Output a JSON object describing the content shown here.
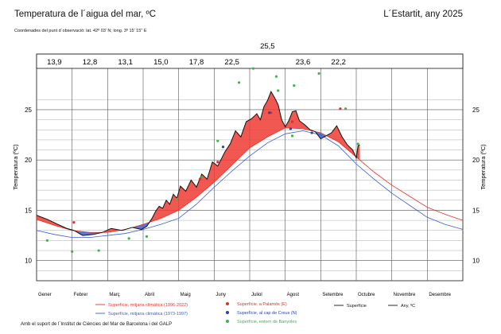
{
  "header": {
    "title": "Temperatura de l´aigua del mar, ºC",
    "subtitle": "Coordenades del punt d´observació: lat. 42º 03' N; long. 3º 15' 15'' E",
    "location": "L´Estartit, any 2025"
  },
  "footer": {
    "credit": "Amb el suport de l´Institut de Ciències del Mar de Barcelona i del GALP"
  },
  "chart_data": {
    "type": "line",
    "title": "Temperatura de l´aigua del mar, ºC",
    "xlabel": "",
    "ylabel": "Temperatura (ºC)",
    "xlim": [
      0,
      12
    ],
    "ylim": [
      8,
      28
    ],
    "yticks": [
      10,
      15,
      20,
      25
    ],
    "grid": true,
    "legend_position": "bottom",
    "x_unit": "month",
    "categories": [
      "Gener",
      "Febrer",
      "Març",
      "Abril",
      "Maig",
      "Juny",
      "Juliol",
      "Agost",
      "Setembre",
      "Octubre",
      "Novembre",
      "Desembre"
    ],
    "monthly_means": [
      "13,9",
      "12,8",
      "13,1",
      "15,0",
      "17,8",
      "22,5",
      "25,5",
      "23,6",
      "22,2",
      "",
      "",
      ""
    ],
    "monthly_means_values": [
      13.9,
      12.8,
      13.1,
      15.0,
      17.8,
      22.5,
      25.5,
      23.6,
      22.2
    ],
    "legend": [
      {
        "label": "Superfície, mitjana climàtica (1996-2022)",
        "color": "#e8312a",
        "kind": "line"
      },
      {
        "label": "Superfície, mitjana climàtica (1973-1997)",
        "color": "#3a5bd9",
        "kind": "line"
      },
      {
        "label": "Superfície, a Palamós (E)",
        "color": "#d4322c",
        "kind": "dot"
      },
      {
        "label": "Superfície, al cap de Creus (N)",
        "color": "#2a3fa8",
        "kind": "dot"
      },
      {
        "label": "Superfície, entorn de Banyoles",
        "color": "#38b64a",
        "kind": "dot"
      },
      {
        "label": "Superfície",
        "color": "#111111",
        "kind": "line"
      },
      {
        "label": "Any,  ºC",
        "color": "#111111",
        "kind": "line"
      }
    ],
    "colors": {
      "warm_fill": "#ee3b33",
      "cool_fill": "#3f5fd3",
      "observed": "#111111"
    },
    "series": [
      {
        "name": "Superfície, mitjana climàtica (1996-2022)",
        "color": "#e8312a",
        "x": [
          0,
          0.5,
          1,
          1.5,
          2,
          2.5,
          3,
          3.5,
          4,
          4.5,
          5,
          5.5,
          6,
          6.5,
          7,
          7.5,
          8,
          8.5,
          9,
          9.5,
          10,
          10.5,
          11,
          11.5,
          12
        ],
        "values": [
          14.1,
          13.5,
          13.0,
          12.8,
          12.8,
          13.1,
          13.6,
          14.2,
          15.0,
          16.3,
          17.8,
          19.5,
          21.2,
          22.3,
          23.2,
          23.1,
          22.7,
          21.8,
          20.3,
          18.8,
          17.5,
          16.4,
          15.3,
          14.6,
          14.0
        ]
      },
      {
        "name": "Superfície, mitjana climàtica (1973-1997)",
        "color": "#3a5bd9",
        "x": [
          0,
          0.5,
          1,
          1.5,
          2,
          2.5,
          3,
          3.5,
          4,
          4.5,
          5,
          5.5,
          6,
          6.5,
          7,
          7.5,
          8,
          8.5,
          9,
          9.5,
          10,
          10.5,
          11,
          11.5,
          12
        ],
        "values": [
          13.0,
          12.6,
          12.3,
          12.3,
          12.5,
          12.7,
          13.1,
          13.6,
          14.2,
          15.6,
          17.3,
          18.9,
          20.4,
          21.7,
          22.6,
          22.9,
          22.5,
          21.4,
          19.6,
          18.1,
          16.7,
          15.5,
          14.3,
          13.6,
          13.1
        ]
      },
      {
        "name": "Superfície",
        "color": "#111111",
        "x": [
          0,
          0.3,
          0.6,
          0.85,
          1.05,
          1.3,
          1.6,
          1.85,
          2.1,
          2.4,
          2.7,
          2.95,
          3.1,
          3.25,
          3.35,
          3.45,
          3.55,
          3.65,
          3.75,
          3.85,
          3.95,
          4.05,
          4.2,
          4.35,
          4.5,
          4.65,
          4.8,
          4.95,
          5.1,
          5.3,
          5.45,
          5.6,
          5.75,
          5.9,
          6.05,
          6.2,
          6.3,
          6.4,
          6.5,
          6.6,
          6.7,
          6.8,
          6.9,
          7.0,
          7.1,
          7.2,
          7.3,
          7.4,
          7.55,
          7.7,
          7.85,
          8.0,
          8.15,
          8.3,
          8.45,
          8.6,
          8.75,
          8.9,
          9.0,
          9.05,
          9.1
        ],
        "values": [
          14.5,
          14.1,
          13.6,
          13.2,
          13.0,
          12.5,
          12.6,
          12.8,
          13.2,
          13.0,
          13.3,
          13.1,
          13.4,
          14.2,
          14.9,
          15.4,
          15.2,
          16.0,
          15.6,
          16.6,
          16.2,
          17.4,
          16.9,
          18.0,
          17.3,
          18.6,
          18.1,
          19.8,
          19.4,
          20.8,
          21.6,
          22.9,
          22.3,
          23.8,
          24.1,
          24.6,
          24.0,
          25.3,
          25.9,
          26.8,
          26.2,
          25.5,
          24.0,
          23.3,
          23.9,
          24.8,
          24.9,
          23.9,
          23.5,
          23.0,
          22.8,
          22.1,
          22.4,
          22.7,
          23.4,
          22.3,
          21.5,
          21.0,
          20.2,
          21.4,
          21.5
        ]
      }
    ],
    "station_points": [
      {
        "name": "Superfície, a Palamós (E)",
        "color": "#d4322c",
        "points": [
          [
            1.05,
            13.8
          ],
          [
            4.6,
            18.1
          ],
          [
            5.1,
            19.8
          ],
          [
            6.6,
            24.7
          ],
          [
            7.2,
            23.8
          ],
          [
            8.55,
            25.1
          ]
        ]
      },
      {
        "name": "Superfície, al cap de Creus (N)",
        "color": "#2a3fa8",
        "points": [
          [
            5.25,
            21.3
          ],
          [
            6.55,
            24.7
          ],
          [
            7.15,
            23.1
          ],
          [
            7.75,
            22.7
          ]
        ]
      },
      {
        "name": "Superfície, entorn de Banyoles",
        "color": "#38b64a",
        "points": [
          [
            0.3,
            12.0
          ],
          [
            1.0,
            10.9
          ],
          [
            1.75,
            11.0
          ],
          [
            2.6,
            12.2
          ],
          [
            3.1,
            12.4
          ],
          [
            3.95,
            16.1
          ],
          [
            4.65,
            18.3
          ],
          [
            5.1,
            21.9
          ],
          [
            5.7,
            27.7
          ],
          [
            6.1,
            29.1
          ],
          [
            6.75,
            28.3
          ],
          [
            6.8,
            26.9
          ],
          [
            7.25,
            27.4
          ],
          [
            7.95,
            28.6
          ],
          [
            8.7,
            25.1
          ],
          [
            9.05,
            21.6
          ],
          [
            7.2,
            22.4
          ]
        ]
      }
    ]
  }
}
